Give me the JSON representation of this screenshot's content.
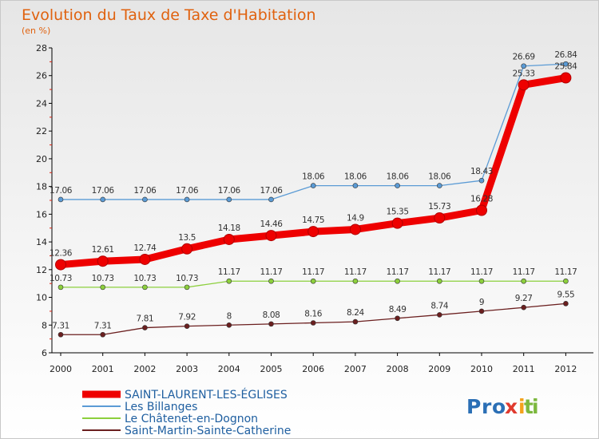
{
  "chart_data": {
    "type": "line",
    "title": "Evolution du Taux de Taxe d'Habitation",
    "subtitle": "(en %)",
    "categories": [
      "2000",
      "2001",
      "2002",
      "2003",
      "2004",
      "2005",
      "2006",
      "2007",
      "2008",
      "2009",
      "2010",
      "2011",
      "2012"
    ],
    "ylim": [
      6,
      28
    ],
    "yticks": [
      6,
      8,
      10,
      12,
      14,
      16,
      18,
      20,
      22,
      24,
      26,
      28
    ],
    "grid": false,
    "legend_position": "bottom-left",
    "series": [
      {
        "name": "SAINT-LAURENT-LES-ÉGLISES",
        "color": "#ee0000",
        "values": [
          12.36,
          12.61,
          12.74,
          13.5,
          14.18,
          14.46,
          14.75,
          14.9,
          15.35,
          15.73,
          16.28,
          25.33,
          25.84
        ],
        "labels": [
          "12.36",
          "12.61",
          "12.74",
          "13.5",
          "14.18",
          "14.46",
          "14.75",
          "14.9",
          "15.35",
          "15.73",
          "16.28",
          "25.33",
          "25.84"
        ]
      },
      {
        "name": "Les Billanges",
        "color": "#5b9bd5",
        "values": [
          17.06,
          17.06,
          17.06,
          17.06,
          17.06,
          17.06,
          18.06,
          18.06,
          18.06,
          18.06,
          18.43,
          26.69,
          26.84
        ],
        "labels": [
          "17.06",
          "17.06",
          "17.06",
          "17.06",
          "17.06",
          "17.06",
          "18.06",
          "18.06",
          "18.06",
          "18.06",
          "18.43",
          "26.69",
          "26.84"
        ]
      },
      {
        "name": "Le Châtenet-en-Dognon",
        "color": "#8ccf3c",
        "values": [
          10.73,
          10.73,
          10.73,
          10.73,
          11.17,
          11.17,
          11.17,
          11.17,
          11.17,
          11.17,
          11.17,
          11.17,
          11.17
        ],
        "labels": [
          "10.73",
          "10.73",
          "10.73",
          "10.73",
          "11.17",
          "11.17",
          "11.17",
          "11.17",
          "11.17",
          "11.17",
          "11.17",
          "11.17",
          "11.17"
        ]
      },
      {
        "name": "Saint-Martin-Sainte-Catherine",
        "color": "#6b1f1f",
        "values": [
          7.31,
          7.31,
          7.81,
          7.92,
          8,
          8.08,
          8.16,
          8.24,
          8.49,
          8.74,
          9,
          9.27,
          9.55
        ],
        "labels": [
          "7.31",
          "7.31",
          "7.81",
          "7.92",
          "8",
          "8.08",
          "8.16",
          "8.24",
          "8.49",
          "8.74",
          "9",
          "9.27",
          "9.55"
        ]
      }
    ]
  },
  "logo": {
    "text": "Proxiti",
    "colors": [
      "#2b6fb5",
      "#e03a2e",
      "#f4a21c",
      "#7cb83e"
    ]
  }
}
